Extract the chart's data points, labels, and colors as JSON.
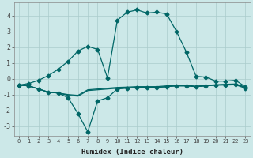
{
  "xlabel": "Humidex (Indice chaleur)",
  "bg_color": "#cce8e8",
  "grid_color": "#aacccc",
  "line_color": "#006666",
  "x_values": [
    0,
    1,
    2,
    3,
    4,
    5,
    6,
    7,
    8,
    9,
    10,
    11,
    12,
    13,
    14,
    15,
    16,
    17,
    18,
    19,
    20,
    21,
    22,
    23
  ],
  "line1": [
    -0.4,
    -0.3,
    -0.1,
    0.2,
    0.6,
    1.1,
    1.75,
    2.05,
    1.85,
    0.05,
    3.7,
    4.2,
    4.35,
    4.15,
    4.2,
    4.1,
    3.0,
    1.7,
    0.15,
    0.1,
    -0.15,
    -0.15,
    -0.1,
    -0.5
  ],
  "line2": [
    -0.4,
    -0.45,
    -0.65,
    -0.85,
    -0.9,
    -1.2,
    -2.2,
    -3.35,
    -1.4,
    -1.2,
    -0.65,
    -0.6,
    -0.55,
    -0.55,
    -0.55,
    -0.5,
    -0.45,
    -0.45,
    -0.5,
    -0.45,
    -0.4,
    -0.4,
    -0.38,
    -0.6
  ],
  "line3": [
    -0.4,
    -0.45,
    -0.65,
    -0.85,
    -0.9,
    -1.05,
    -1.1,
    -0.75,
    -0.7,
    -0.65,
    -0.6,
    -0.58,
    -0.55,
    -0.55,
    -0.55,
    -0.5,
    -0.45,
    -0.45,
    -0.5,
    -0.45,
    -0.4,
    -0.38,
    -0.36,
    -0.55
  ],
  "line4": [
    -0.4,
    -0.45,
    -0.65,
    -0.85,
    -0.9,
    -1.0,
    -1.05,
    -0.7,
    -0.65,
    -0.6,
    -0.55,
    -0.53,
    -0.5,
    -0.5,
    -0.5,
    -0.45,
    -0.42,
    -0.42,
    -0.47,
    -0.42,
    -0.38,
    -0.35,
    -0.33,
    -0.52
  ],
  "ylim": [
    -3.6,
    4.8
  ],
  "yticks": [
    -3,
    -2,
    -1,
    0,
    1,
    2,
    3,
    4
  ],
  "figsize": [
    3.2,
    2.0
  ],
  "dpi": 100
}
